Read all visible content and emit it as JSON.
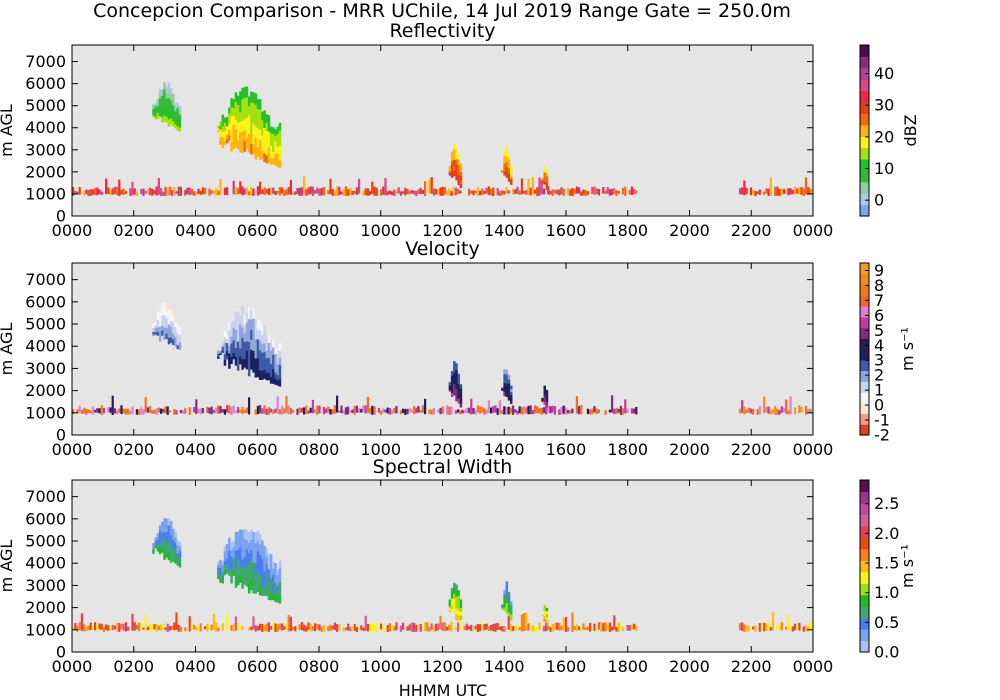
{
  "figure": {
    "suptitle": "Concepcion Comparison - MRR UChile, 14 Jul 2019 Range Gate = 250.0m",
    "xlabel": "HHMM UTC",
    "background": "#e5e5e5"
  },
  "chart_data": [
    {
      "type": "heatmap",
      "title": "Reflectivity",
      "ylabel": "m AGL",
      "xlabel": "",
      "xlim": [
        0,
        2400
      ],
      "ylim": [
        0,
        7750
      ],
      "xticks": [
        "0000",
        "0200",
        "0400",
        "0600",
        "0800",
        "1000",
        "1200",
        "1400",
        "1600",
        "1800",
        "2000",
        "2200",
        "0000"
      ],
      "yticks": [
        0,
        1000,
        2000,
        3000,
        4000,
        5000,
        6000,
        7000
      ],
      "grid": false,
      "colorbar": {
        "label": "dBZ",
        "range": [
          -5,
          49
        ],
        "ticks": [
          "0",
          "10",
          "20",
          "30",
          "40"
        ],
        "tick_values": [
          0,
          10,
          20,
          30,
          40
        ],
        "colormap": [
          "#7aa6f0",
          "#aacbe8",
          "#8fd0a0",
          "#37b83a",
          "#22c12a",
          "#a7e00f",
          "#fff21c",
          "#ffb210",
          "#f26a0e",
          "#e8420c",
          "#ea2a45",
          "#d34a86",
          "#b43f98",
          "#8a2d85",
          "#4d0d4b"
        ]
      },
      "data_regions": [
        {
          "name": "Low-level band",
          "x": [
            0,
            1830
          ],
          "y": [
            900,
            1350
          ],
          "value": 30
        },
        {
          "name": "Low-level band late",
          "x": [
            2160,
            2400
          ],
          "y": [
            900,
            1350
          ],
          "value": 30
        },
        {
          "name": "Echo 0300",
          "x": [
            260,
            350
          ],
          "y": [
            3800,
            6100
          ],
          "value": 7
        },
        {
          "name": "Echo 0500-0630",
          "x": [
            470,
            670
          ],
          "y": [
            2200,
            5900
          ],
          "value": 16
        },
        {
          "name": "Echo 1230",
          "x": [
            1220,
            1260
          ],
          "y": [
            1200,
            3400
          ],
          "value": 24
        },
        {
          "name": "Echo 1400",
          "x": [
            1390,
            1420
          ],
          "y": [
            1400,
            3200
          ],
          "value": 22
        },
        {
          "name": "Echo 1530",
          "x": [
            1520,
            1540
          ],
          "y": [
            1100,
            2300
          ],
          "value": 24
        }
      ]
    },
    {
      "type": "heatmap",
      "title": "Velocity",
      "ylabel": "m AGL",
      "xlabel": "",
      "xlim": [
        0,
        2400
      ],
      "ylim": [
        0,
        7750
      ],
      "xticks": [
        "0000",
        "0200",
        "0400",
        "0600",
        "0800",
        "1000",
        "1200",
        "1400",
        "1600",
        "1800",
        "2000",
        "2200",
        "0000"
      ],
      "yticks": [
        0,
        1000,
        2000,
        3000,
        4000,
        5000,
        6000,
        7000
      ],
      "grid": false,
      "colorbar": {
        "label": "m s⁻¹",
        "range": [
          -2,
          9.5
        ],
        "ticks": [
          "-2",
          "-1",
          "0",
          "1",
          "2",
          "3",
          "4",
          "5",
          "6",
          "7",
          "8",
          "9"
        ],
        "tick_values": [
          -2,
          -1,
          0,
          1,
          2,
          3,
          4,
          5,
          6,
          7,
          8,
          9
        ],
        "colormap": [
          "#d8431e",
          "#f39a80",
          "#fae3da",
          "#f5f5f8",
          "#c9d3ec",
          "#8ea6d9",
          "#3f5aa5",
          "#1a2160",
          "#2c1a55",
          "#7d2d82",
          "#c43c9c",
          "#e27fd0",
          "#ee6a2a",
          "#f07a1a",
          "#f28a22",
          "#f39a2c"
        ]
      },
      "data_regions": [
        {
          "name": "Low-level band",
          "x": [
            0,
            1830
          ],
          "y": [
            900,
            1350
          ],
          "value": 6
        },
        {
          "name": "Low-level band late",
          "x": [
            2160,
            2400
          ],
          "y": [
            900,
            1350
          ],
          "value": 7.5
        },
        {
          "name": "Echo 0300",
          "x": [
            260,
            350
          ],
          "y": [
            3800,
            6100
          ],
          "value": 1
        },
        {
          "name": "Echo 0500-0630",
          "x": [
            470,
            670
          ],
          "y": [
            2200,
            5900
          ],
          "value": 2
        },
        {
          "name": "Echo 1230",
          "x": [
            1220,
            1260
          ],
          "y": [
            1200,
            3400
          ],
          "value": 3.5
        },
        {
          "name": "Echo 1400",
          "x": [
            1390,
            1420
          ],
          "y": [
            1400,
            3200
          ],
          "value": 3
        },
        {
          "name": "Echo 1530",
          "x": [
            1520,
            1540
          ],
          "y": [
            1100,
            2300
          ],
          "value": 4
        }
      ]
    },
    {
      "type": "heatmap",
      "title": "Spectral Width",
      "ylabel": "m AGL",
      "xlabel": "HHMM UTC",
      "xlim": [
        0,
        2400
      ],
      "ylim": [
        0,
        7750
      ],
      "xticks": [
        "0000",
        "0200",
        "0400",
        "0600",
        "0800",
        "1000",
        "1200",
        "1400",
        "1600",
        "1800",
        "2000",
        "2200",
        "0000"
      ],
      "yticks": [
        0,
        1000,
        2000,
        3000,
        4000,
        5000,
        6000,
        7000
      ],
      "grid": false,
      "colorbar": {
        "label": "m s⁻¹",
        "range": [
          0,
          2.9
        ],
        "ticks": [
          "0.0",
          "0.5",
          "1.0",
          "1.5",
          "2.0",
          "2.5"
        ],
        "tick_values": [
          0,
          0.5,
          1.0,
          1.5,
          2.0,
          2.5
        ],
        "colormap": [
          "#a9c3f2",
          "#7aa2ef",
          "#4a7ef0",
          "#3fa86a",
          "#1fbb22",
          "#9be012",
          "#fff21c",
          "#ffbd12",
          "#f5821a",
          "#e84a0f",
          "#e83f55",
          "#d45e9a",
          "#c04aa0",
          "#9a3590",
          "#5c0e55"
        ]
      },
      "data_regions": [
        {
          "name": "Low-level band",
          "x": [
            0,
            1830
          ],
          "y": [
            900,
            1350
          ],
          "value": 1.7
        },
        {
          "name": "Low-level band late",
          "x": [
            2160,
            2400
          ],
          "y": [
            900,
            1350
          ],
          "value": 1.7
        },
        {
          "name": "Echo 0300",
          "x": [
            260,
            350
          ],
          "y": [
            3800,
            6100
          ],
          "value": 0.45
        },
        {
          "name": "Echo 0500-0630",
          "x": [
            470,
            670
          ],
          "y": [
            2200,
            5900
          ],
          "value": 0.4
        },
        {
          "name": "Echo 1230",
          "x": [
            1220,
            1260
          ],
          "y": [
            1200,
            3400
          ],
          "value": 1.0
        },
        {
          "name": "Echo 1400",
          "x": [
            1390,
            1420
          ],
          "y": [
            1400,
            3200
          ],
          "value": 0.7
        },
        {
          "name": "Echo 1530",
          "x": [
            1520,
            1540
          ],
          "y": [
            1100,
            2300
          ],
          "value": 1.2
        }
      ]
    }
  ]
}
